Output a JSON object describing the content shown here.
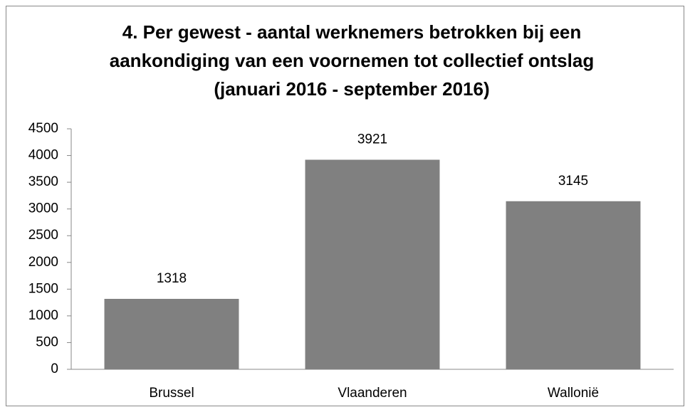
{
  "chart_data": {
    "type": "bar",
    "title": [
      "4. Per gewest - aantal werknemers betrokken bij een",
      "aankondiging van een voornemen tot collectief ontslag",
      "(januari 2016 - september 2016)"
    ],
    "categories": [
      "Brussel",
      "Vlaanderen",
      "Wallonië"
    ],
    "values": [
      1318,
      3921,
      3145
    ],
    "color": "#808080",
    "ylim": [
      0,
      4500
    ],
    "yticks": [
      0,
      500,
      1000,
      1500,
      2000,
      2500,
      3000,
      3500,
      4000,
      4500
    ],
    "grid": false
  }
}
